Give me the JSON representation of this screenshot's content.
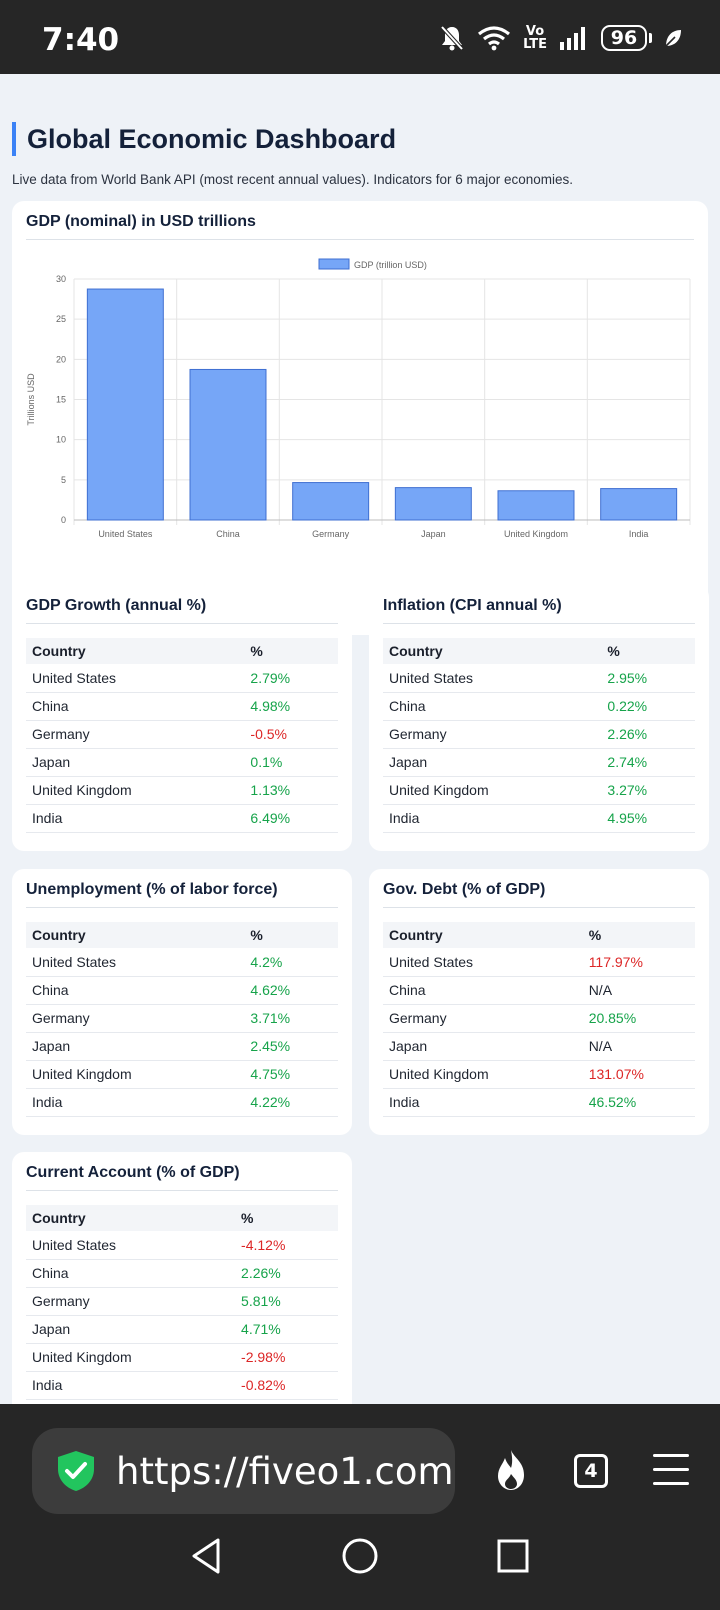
{
  "status_bar": {
    "time": "7:40",
    "network_label_top": "Vo",
    "network_label_bottom": "LTE",
    "battery": "96",
    "icons": [
      "mute-bell-icon",
      "wifi-icon",
      "signal-bars-icon",
      "battery-icon",
      "leaf-icon"
    ]
  },
  "page": {
    "title": "Global Economic Dashboard",
    "subtitle": "Live data from World Bank API (most recent annual values). Indicators for 6 major economies."
  },
  "chart_card": {
    "title": "GDP (nominal) in USD trillions"
  },
  "chart_data": {
    "type": "bar",
    "categories": [
      "United States",
      "China",
      "Germany",
      "Japan",
      "United Kingdom",
      "India"
    ],
    "series": [
      {
        "name": "GDP (trillion USD)",
        "values": [
          28.75,
          18.74,
          4.66,
          4.03,
          3.64,
          3.91
        ],
        "color": "#76a6f7"
      }
    ],
    "ylabel": "Trillions USD",
    "xlabel": "",
    "ylim": [
      0,
      30
    ],
    "yticks": [
      0,
      5,
      10,
      15,
      20,
      25,
      30
    ],
    "grid": true,
    "legend_position": "top"
  },
  "tables": {
    "growth": {
      "title": "GDP Growth (annual %)",
      "col_country": "Country",
      "col_value": "%",
      "rows": [
        {
          "country": "United States",
          "value": "2.79%",
          "tone": "pos"
        },
        {
          "country": "China",
          "value": "4.98%",
          "tone": "pos"
        },
        {
          "country": "Germany",
          "value": "-0.5%",
          "tone": "neg"
        },
        {
          "country": "Japan",
          "value": "0.1%",
          "tone": "pos"
        },
        {
          "country": "United Kingdom",
          "value": "1.13%",
          "tone": "pos"
        },
        {
          "country": "India",
          "value": "6.49%",
          "tone": "pos"
        }
      ]
    },
    "inflation": {
      "title": "Inflation (CPI annual %)",
      "col_country": "Country",
      "col_value": "%",
      "rows": [
        {
          "country": "United States",
          "value": "2.95%",
          "tone": "pos"
        },
        {
          "country": "China",
          "value": "0.22%",
          "tone": "pos"
        },
        {
          "country": "Germany",
          "value": "2.26%",
          "tone": "pos"
        },
        {
          "country": "Japan",
          "value": "2.74%",
          "tone": "pos"
        },
        {
          "country": "United Kingdom",
          "value": "3.27%",
          "tone": "pos"
        },
        {
          "country": "India",
          "value": "4.95%",
          "tone": "pos"
        }
      ]
    },
    "unemployment": {
      "title": "Unemployment (% of labor force)",
      "col_country": "Country",
      "col_value": "%",
      "rows": [
        {
          "country": "United States",
          "value": "4.2%",
          "tone": "pos"
        },
        {
          "country": "China",
          "value": "4.62%",
          "tone": "pos"
        },
        {
          "country": "Germany",
          "value": "3.71%",
          "tone": "pos"
        },
        {
          "country": "Japan",
          "value": "2.45%",
          "tone": "pos"
        },
        {
          "country": "United Kingdom",
          "value": "4.75%",
          "tone": "pos"
        },
        {
          "country": "India",
          "value": "4.22%",
          "tone": "pos"
        }
      ]
    },
    "debt": {
      "title": "Gov. Debt (% of GDP)",
      "col_country": "Country",
      "col_value": "%",
      "rows": [
        {
          "country": "United States",
          "value": "117.97%",
          "tone": "neg"
        },
        {
          "country": "China",
          "value": "N/A",
          "tone": "na"
        },
        {
          "country": "Germany",
          "value": "20.85%",
          "tone": "pos"
        },
        {
          "country": "Japan",
          "value": "N/A",
          "tone": "na"
        },
        {
          "country": "United Kingdom",
          "value": "131.07%",
          "tone": "neg"
        },
        {
          "country": "India",
          "value": "46.52%",
          "tone": "pos"
        }
      ]
    },
    "current_account": {
      "title": "Current Account (% of GDP)",
      "col_country": "Country",
      "col_value": "%",
      "rows": [
        {
          "country": "United States",
          "value": "-4.12%",
          "tone": "neg"
        },
        {
          "country": "China",
          "value": "2.26%",
          "tone": "pos"
        },
        {
          "country": "Germany",
          "value": "5.81%",
          "tone": "pos"
        },
        {
          "country": "Japan",
          "value": "4.71%",
          "tone": "pos"
        },
        {
          "country": "United Kingdom",
          "value": "-2.98%",
          "tone": "neg"
        },
        {
          "country": "India",
          "value": "-0.82%",
          "tone": "neg"
        }
      ]
    }
  },
  "browser": {
    "url": "https://fiveo1.com",
    "tab_count": "4",
    "icons": [
      "shield-check-icon",
      "flame-icon",
      "tabs-icon",
      "menu-icon"
    ]
  },
  "nav_bar": {
    "icons": [
      "back-icon",
      "home-icon",
      "recents-icon"
    ]
  },
  "colors": {
    "accent": "#3b82f6",
    "bar": "#76a6f7",
    "positive": "#16a34a",
    "negative": "#dc2626",
    "page_bg": "#eef2f7",
    "chrome_bg": "#262626"
  }
}
